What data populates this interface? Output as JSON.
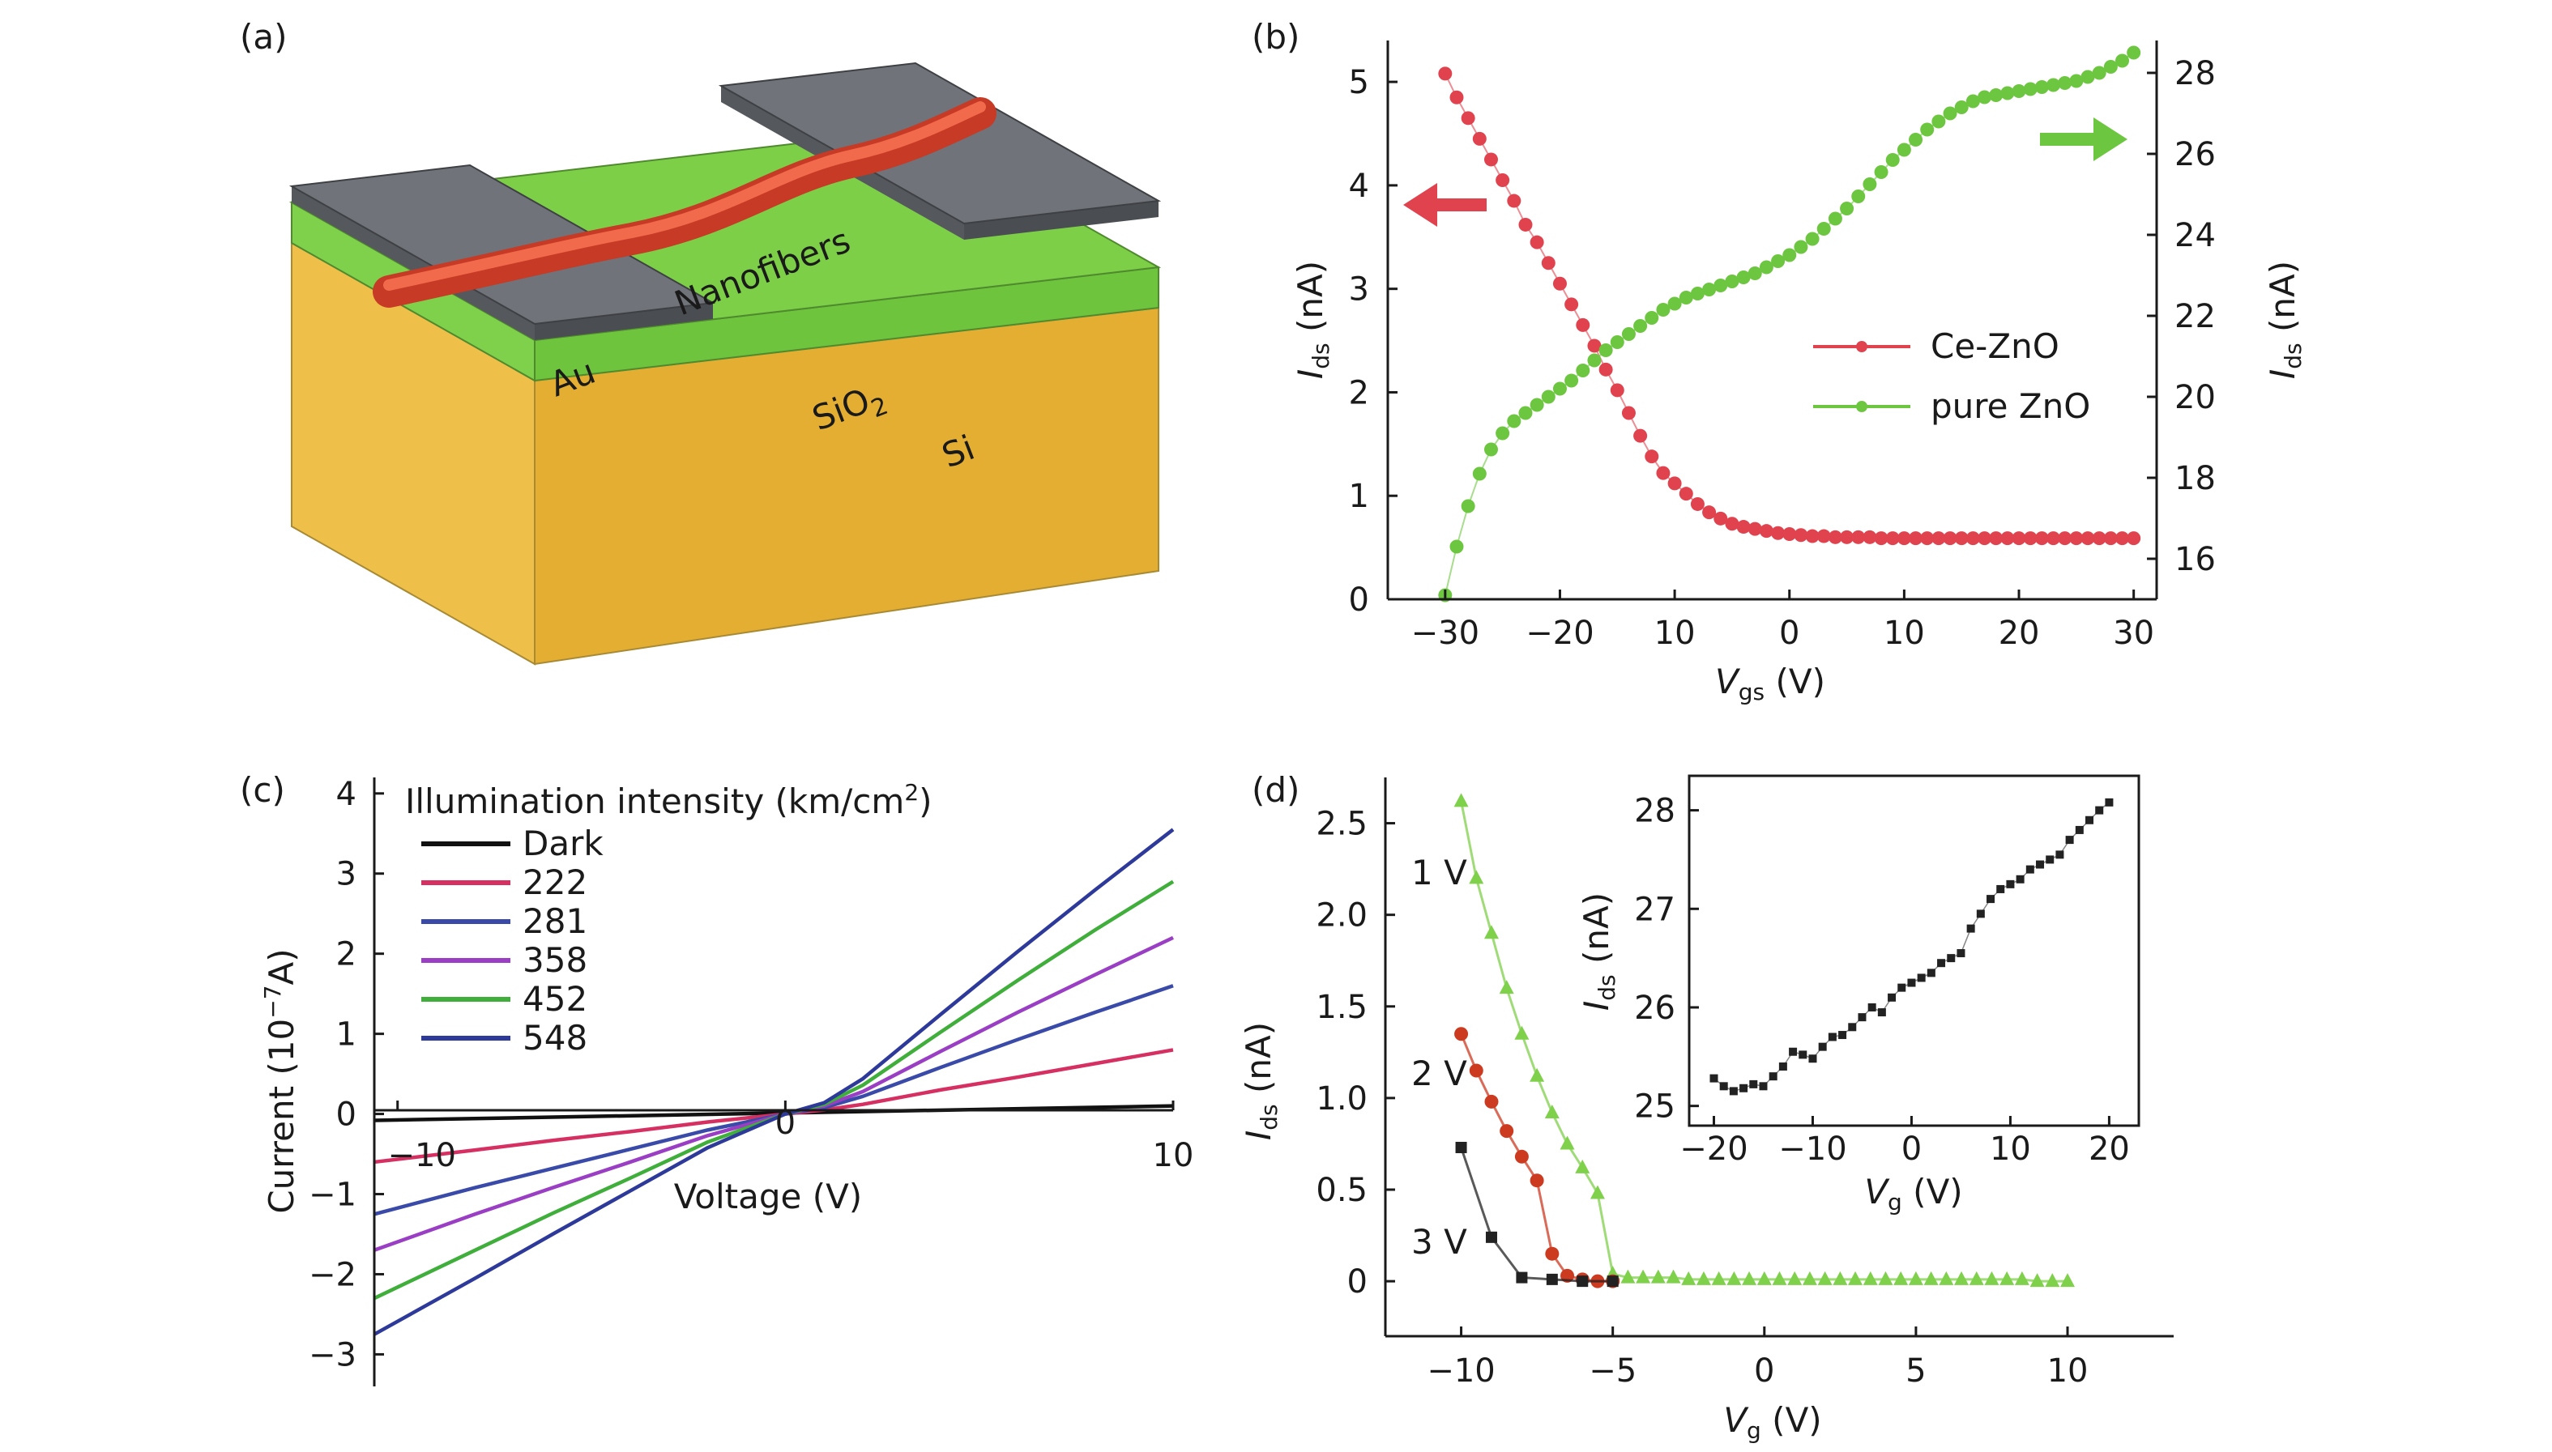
{
  "panels": {
    "a": {
      "label": "(a)",
      "texts": {
        "nanofibers": "Nanofibers",
        "au": "Au",
        "sio2": "SiO",
        "sio2_sub": "2",
        "si": "Si"
      },
      "colors": {
        "gold": "#e9b838",
        "green": "#76c94a",
        "gray": "#6f7278",
        "fiber": "#f2543a"
      }
    },
    "b": {
      "label": "(b)",
      "xlabel": {
        "main": "V",
        "sub": "gs",
        "unit": " (V)"
      },
      "ylabel_left": {
        "main": "I",
        "sub": "ds",
        "unit": " (nA)"
      },
      "ylabel_right": {
        "main": "I",
        "sub": "ds",
        "unit": " (nA)"
      },
      "xticks": [
        "−30",
        "−20",
        "10",
        "0",
        "10",
        "20",
        "30"
      ],
      "yticks_left": [
        "0",
        "1",
        "2",
        "3",
        "4",
        "5"
      ],
      "yticks_right": [
        "16",
        "18",
        "20",
        "22",
        "24",
        "26",
        "28"
      ],
      "legend": [
        "Ce-ZnO",
        "pure ZnO"
      ]
    },
    "c": {
      "label": "(c)",
      "xlabel": "Voltage (V)",
      "ylabel": {
        "main": "Current (10",
        "sup": "−7",
        "unit": "A)"
      },
      "xticks": [
        "−10",
        "0",
        "10"
      ],
      "yticks": [
        "−3",
        "−2",
        "−1",
        "0",
        "1",
        "2",
        "3",
        "4"
      ],
      "legend_title": {
        "main": "Illumination intensity (km/cm",
        "sup": "2",
        "end": ")"
      },
      "legend": [
        "Dark",
        "222",
        "281",
        "358",
        "452",
        "548"
      ]
    },
    "d": {
      "label": "(d)",
      "xlabel": {
        "main": "V",
        "sub": "g",
        "unit": " (V)"
      },
      "ylabel": {
        "main": "I",
        "sub": "ds",
        "unit": " (nA)"
      },
      "xticks": [
        "−10",
        "−5",
        "0",
        "5",
        "10"
      ],
      "yticks": [
        "0",
        "0.5",
        "1.0",
        "1.5",
        "2.0",
        "2.5"
      ],
      "series_labels": [
        "1 V",
        "2 V",
        "3 V"
      ],
      "inset": {
        "xlabel": {
          "main": "V",
          "sub": "g",
          "unit": " (V)"
        },
        "ylabel": {
          "main": "I",
          "sub": "ds",
          "unit": " (nA)"
        },
        "xticks": [
          "−20",
          "−10",
          "0",
          "10",
          "20"
        ],
        "yticks": [
          "25",
          "26",
          "27",
          "28"
        ]
      }
    }
  },
  "chart_data": [
    {
      "panel": "b",
      "type": "scatter",
      "xlim": [
        -35,
        32
      ],
      "ylim_left": [
        0,
        5.4
      ],
      "ylim_right": [
        15,
        28.8
      ],
      "series": [
        {
          "name": "Ce-ZnO",
          "axis": "left",
          "color": "#e0424e",
          "x": [
            -30,
            -29,
            -28,
            -27,
            -26,
            -25,
            -24,
            -23,
            -22,
            -21,
            -20,
            -19,
            -18,
            -17,
            -16,
            -15,
            -14,
            -13,
            -12,
            -11,
            -10,
            -9,
            -8,
            -7,
            -6,
            -5,
            -4,
            -3,
            -2,
            -1,
            0,
            1,
            2,
            3,
            4,
            5,
            6,
            7,
            8,
            9,
            10,
            11,
            12,
            13,
            14,
            15,
            16,
            17,
            18,
            19,
            20,
            21,
            22,
            23,
            24,
            25,
            26,
            27,
            28,
            29,
            30
          ],
          "y": [
            5.08,
            4.85,
            4.65,
            4.45,
            4.25,
            4.05,
            3.85,
            3.62,
            3.45,
            3.25,
            3.05,
            2.85,
            2.65,
            2.45,
            2.22,
            2.02,
            1.8,
            1.58,
            1.38,
            1.22,
            1.12,
            1.02,
            0.92,
            0.84,
            0.78,
            0.73,
            0.7,
            0.68,
            0.66,
            0.64,
            0.63,
            0.62,
            0.61,
            0.61,
            0.6,
            0.6,
            0.6,
            0.6,
            0.59,
            0.59,
            0.59,
            0.59,
            0.59,
            0.59,
            0.59,
            0.59,
            0.59,
            0.59,
            0.59,
            0.59,
            0.59,
            0.59,
            0.59,
            0.59,
            0.59,
            0.59,
            0.59,
            0.59,
            0.59,
            0.59,
            0.59
          ]
        },
        {
          "name": "pure ZnO",
          "axis": "right",
          "color": "#6cc63f",
          "x": [
            -30,
            -29,
            -28,
            -27,
            -26,
            -25,
            -24,
            -23,
            -22,
            -21,
            -20,
            -19,
            -18,
            -17,
            -16,
            -15,
            -14,
            -13,
            -12,
            -11,
            -10,
            -9,
            -8,
            -7,
            -6,
            -5,
            -4,
            -3,
            -2,
            -1,
            0,
            1,
            2,
            3,
            4,
            5,
            6,
            7,
            8,
            9,
            10,
            11,
            12,
            13,
            14,
            15,
            16,
            17,
            18,
            19,
            20,
            21,
            22,
            23,
            24,
            25,
            26,
            27,
            28,
            29,
            30
          ],
          "y": [
            15.1,
            16.3,
            17.3,
            18.1,
            18.7,
            19.1,
            19.4,
            19.6,
            19.8,
            20.0,
            20.2,
            20.4,
            20.65,
            20.9,
            21.15,
            21.35,
            21.55,
            21.75,
            21.95,
            22.15,
            22.3,
            22.45,
            22.55,
            22.65,
            22.75,
            22.85,
            22.95,
            23.05,
            23.2,
            23.35,
            23.5,
            23.7,
            23.9,
            24.15,
            24.4,
            24.65,
            24.95,
            25.25,
            25.55,
            25.85,
            26.1,
            26.35,
            26.6,
            26.8,
            27.0,
            27.15,
            27.3,
            27.4,
            27.45,
            27.5,
            27.55,
            27.6,
            27.65,
            27.7,
            27.75,
            27.8,
            27.9,
            28.0,
            28.15,
            28.3,
            28.5
          ]
        }
      ]
    },
    {
      "panel": "c",
      "type": "line",
      "xlim": [
        -10.6,
        10
      ],
      "ylim": [
        -3.4,
        4.2
      ],
      "series": [
        {
          "name": "Dark",
          "color": "#111111",
          "x": [
            -10.6,
            10
          ],
          "y": [
            -0.08,
            0.1
          ]
        },
        {
          "name": "222",
          "color": "#d62f62",
          "x": [
            -10.6,
            -8,
            -6,
            -4,
            -2,
            0,
            1,
            2,
            4,
            6,
            8,
            10
          ],
          "y": [
            -0.6,
            -0.45,
            -0.33,
            -0.22,
            -0.1,
            0,
            0.05,
            0.12,
            0.3,
            0.46,
            0.63,
            0.8
          ]
        },
        {
          "name": "281",
          "color": "#3a4aa8",
          "x": [
            -10.6,
            -8,
            -6,
            -4,
            -2,
            0,
            1,
            2,
            4,
            6,
            8,
            10
          ],
          "y": [
            -1.25,
            -0.92,
            -0.68,
            -0.44,
            -0.2,
            0,
            0.08,
            0.22,
            0.58,
            0.93,
            1.27,
            1.6
          ]
        },
        {
          "name": "358",
          "color": "#9a3fc4",
          "x": [
            -10.6,
            -8,
            -6,
            -4,
            -2,
            0,
            1,
            2,
            4,
            6,
            8,
            10
          ],
          "y": [
            -1.7,
            -1.25,
            -0.92,
            -0.6,
            -0.27,
            0,
            0.1,
            0.28,
            0.78,
            1.27,
            1.74,
            2.2
          ]
        },
        {
          "name": "452",
          "color": "#3fae3a",
          "x": [
            -10.6,
            -8,
            -6,
            -4,
            -2,
            0,
            1,
            2,
            4,
            6,
            8,
            10
          ],
          "y": [
            -2.3,
            -1.7,
            -1.24,
            -0.8,
            -0.35,
            0,
            0.12,
            0.36,
            1.02,
            1.67,
            2.3,
            2.9
          ]
        },
        {
          "name": "548",
          "color": "#2d3a9a",
          "x": [
            -10.6,
            -8,
            -6,
            -4,
            -2,
            0,
            1,
            2,
            4,
            6,
            8,
            10
          ],
          "y": [
            -2.75,
            -2.05,
            -1.5,
            -0.96,
            -0.42,
            0,
            0.14,
            0.44,
            1.24,
            2.03,
            2.8,
            3.55
          ]
        }
      ]
    },
    {
      "panel": "d",
      "type": "line",
      "xlim": [
        -12.5,
        13.5
      ],
      "ylim": [
        -0.3,
        2.75
      ],
      "series": [
        {
          "name": "1 V",
          "color": "#7fd04b",
          "x": [
            -10,
            -9.5,
            -9,
            -8.5,
            -8,
            -7.5,
            -7,
            -6.5,
            -6,
            -5.5,
            -5,
            -4.5,
            -4,
            -3.5,
            -3,
            -2.5,
            -2,
            -1.5,
            -1,
            -0.5,
            0,
            0.5,
            1,
            1.5,
            2,
            2.5,
            3,
            3.5,
            4,
            4.5,
            5,
            5.5,
            6,
            6.5,
            7,
            7.5,
            8,
            8.5,
            9,
            9.5,
            10
          ],
          "y": [
            2.62,
            2.2,
            1.9,
            1.6,
            1.35,
            1.12,
            0.92,
            0.75,
            0.62,
            0.48,
            0.04,
            0.02,
            0.02,
            0.02,
            0.02,
            0.01,
            0.01,
            0.01,
            0.01,
            0.01,
            0.01,
            0.01,
            0.01,
            0.01,
            0.01,
            0.01,
            0.01,
            0.01,
            0.01,
            0.01,
            0.01,
            0.01,
            0.01,
            0.01,
            0.01,
            0.01,
            0.01,
            0.01,
            0.0,
            0.0,
            0.0
          ]
        },
        {
          "name": "2 V",
          "color": "#cc3a20",
          "x": [
            -10,
            -9.5,
            -9,
            -8.5,
            -8,
            -7.5,
            -7,
            -6.5,
            -6,
            -5.5,
            -5
          ],
          "y": [
            1.35,
            1.15,
            0.98,
            0.82,
            0.68,
            0.55,
            0.15,
            0.03,
            0.01,
            0.0,
            0.0
          ]
        },
        {
          "name": "3 V",
          "color": "#222222",
          "x": [
            -10,
            -9,
            -8,
            -7,
            -6,
            -5
          ],
          "y": [
            0.73,
            0.24,
            0.02,
            0.01,
            0.0,
            0.0
          ]
        }
      ],
      "inset": {
        "type": "scatter",
        "xlim": [
          -22.5,
          23
        ],
        "ylim": [
          24.8,
          28.35
        ],
        "x": [
          -20,
          -19,
          -18,
          -17,
          -16,
          -15,
          -14,
          -13,
          -12,
          -11,
          -10,
          -9,
          -8,
          -7,
          -6,
          -5,
          -4,
          -3,
          -2,
          -1,
          0,
          1,
          2,
          3,
          4,
          5,
          6,
          7,
          8,
          9,
          10,
          11,
          12,
          13,
          14,
          15,
          16,
          17,
          18,
          19,
          20
        ],
        "y": [
          25.28,
          25.2,
          25.15,
          25.18,
          25.22,
          25.2,
          25.3,
          25.4,
          25.55,
          25.52,
          25.48,
          25.6,
          25.7,
          25.72,
          25.8,
          25.9,
          26.0,
          25.95,
          26.1,
          26.2,
          26.25,
          26.3,
          26.35,
          26.45,
          26.5,
          26.55,
          26.8,
          26.95,
          27.1,
          27.2,
          27.25,
          27.3,
          27.4,
          27.45,
          27.5,
          27.55,
          27.7,
          27.8,
          27.9,
          28.0,
          28.08
        ]
      }
    }
  ]
}
